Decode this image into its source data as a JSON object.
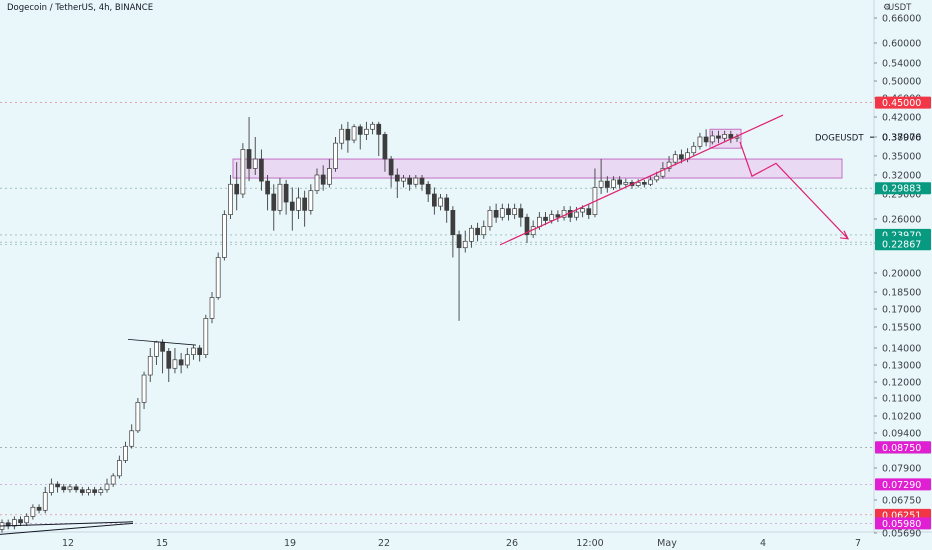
{
  "header": {
    "title": "Dogecoin / TetherUS, 4h, BINANCE"
  },
  "axis": {
    "currency": "USDT"
  },
  "chart_data": {
    "type": "candlestick",
    "symbol": "DOGEUSDT",
    "timeframe": "4h",
    "exchange": "BINANCE",
    "y_scale": "log",
    "y_ticks": [
      "0.66000",
      "0.60000",
      "0.54000",
      "0.50000",
      "0.46000",
      "0.42000",
      "0.38000",
      "0.35000",
      "0.32000",
      "0.29000",
      "0.26000",
      "0.23000",
      "0.20000",
      "0.18500",
      "0.17000",
      "0.15500",
      "0.14000",
      "0.13000",
      "0.12000",
      "0.11000",
      "0.10200",
      "0.09400",
      "0.07900",
      "0.06750",
      "0.05690"
    ],
    "x_ticks": [
      "12",
      "15",
      "19",
      "22",
      "26",
      "12:00",
      "May",
      "4",
      "7"
    ],
    "price_tags": [
      {
        "value": "0.45000",
        "color": "#f23645"
      },
      {
        "value": "0.29883",
        "color": "#089981"
      },
      {
        "value": "0.23970",
        "color": "#089981"
      },
      {
        "value": "0.23100",
        "color": "#089981"
      },
      {
        "value": "0.22867",
        "color": "#089981"
      },
      {
        "value": "0.08750",
        "color": "#131722"
      },
      {
        "value": "0.08750",
        "color": "#e01fd2"
      },
      {
        "value": "0.07290",
        "color": "#e01fd2"
      },
      {
        "value": "0.06251",
        "color": "#f23645"
      },
      {
        "value": "0.05980",
        "color": "#e01fd2"
      }
    ],
    "last_price": {
      "label": "DOGEUSDT",
      "value": "0.37976"
    },
    "annotations": [
      "resistance zone near 0.31-0.34",
      "ascending trendline from ~0.23 to ~0.42",
      "projected drop arrow towards ~0.23"
    ],
    "colors": {
      "up": "#ffffff",
      "down": "#3d3d3d",
      "zone": "#e9b4e6",
      "trend": "#e0216e"
    }
  }
}
